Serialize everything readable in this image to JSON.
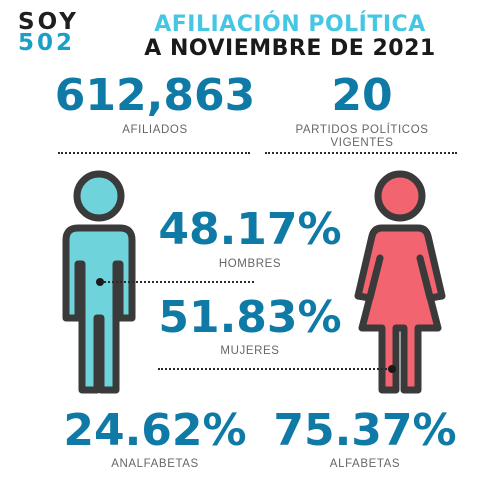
{
  "logo": {
    "line1": "SOY",
    "line2": "502"
  },
  "title": {
    "line1": "AFILIACIÓN POLÍTICA",
    "line2": "A NOVIEMBRE DE 2021"
  },
  "stats": {
    "afiliados": {
      "value": "612,863",
      "label": "AFILIADOS"
    },
    "partidos": {
      "value": "20",
      "label_line1": "PARTIDOS POLÍTICOS",
      "label_line2": "VIGENTES"
    },
    "hombres": {
      "value": "48.17%",
      "label": "HOMBRES"
    },
    "mujeres": {
      "value": "51.83%",
      "label": "MUJERES"
    },
    "analfabetas": {
      "value": "24.62%",
      "label": "ANALFABETAS"
    },
    "alfabetas": {
      "value": "75.37%",
      "label": "ALFABETAS"
    }
  },
  "colors": {
    "male": "#6fd3dc",
    "female": "#f26470",
    "outline": "#3a3a3a",
    "accent": "#0f7aa6",
    "title_accent": "#45c7e3"
  },
  "icons": {
    "male": "man-figure-icon",
    "female": "woman-figure-icon"
  }
}
